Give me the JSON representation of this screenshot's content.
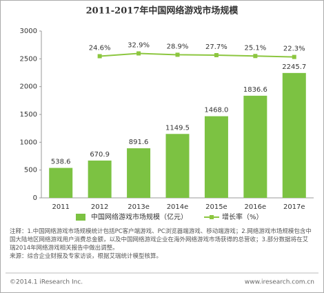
{
  "chart_data": {
    "type": "bar",
    "title": "2011-2017年中国网络游戏市场规模",
    "categories": [
      "2011",
      "2012",
      "2013e",
      "2014e",
      "2015e",
      "2016e",
      "2017e"
    ],
    "series": [
      {
        "name": "中国网络游戏市场规模（亿元）",
        "type": "bar",
        "color": "#7cc242",
        "values": [
          538.6,
          670.9,
          891.6,
          1149.5,
          1468.0,
          1836.6,
          2245.7
        ],
        "value_labels": [
          "538.6",
          "670.9",
          "891.6",
          "1149.5",
          "1468.0",
          "1836.6",
          "2245.7"
        ]
      },
      {
        "name": "增长率（%）",
        "type": "line",
        "axis": "y2",
        "color": "#8cc63f",
        "values": [
          null,
          24.6,
          32.9,
          28.9,
          27.7,
          25.1,
          22.3
        ],
        "value_labels": [
          null,
          "24.6%",
          "32.9%",
          "28.9%",
          "27.7%",
          "25.1%",
          "22.3%"
        ]
      }
    ],
    "ylim": [
      0,
      3000
    ],
    "yticks": [
      0,
      500,
      1000,
      1500,
      2000,
      2500,
      3000
    ],
    "y2lim": [
      -400,
      100
    ],
    "grid": false,
    "legend": "bottom",
    "notes": [
      "注释：1.中国网络游戏市场规模统计包括PC客户端游戏、PC浏览器端游戏、移动端游戏；2.网络游戏市场规模包含中国大陆地区网络游戏用户消费总金额，以及中国网络游戏企业在海外网络游戏市场获得的总营收；3.部分数据将在艾瑞2014年网络游戏相关报告中做出调整。",
      "来源：综合企业财报及专家访谈，根据艾瑞统计模型核算。"
    ],
    "copyright": "©2014.1 iResearch Inc.",
    "website": "www.iresearch.com.cn"
  }
}
